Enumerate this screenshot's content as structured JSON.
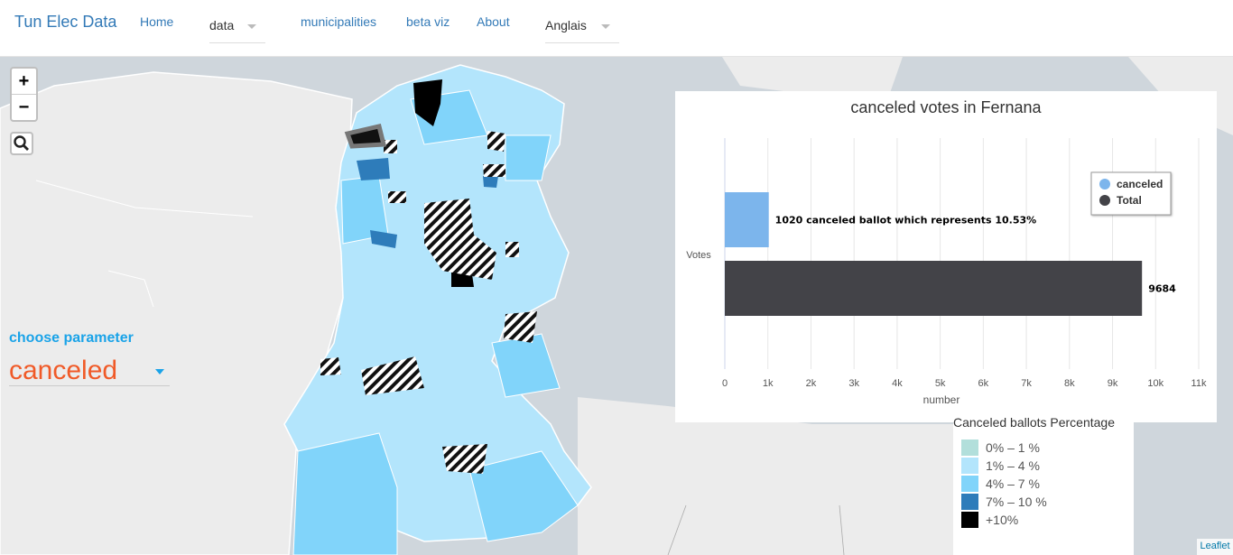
{
  "navbar": {
    "brand": "Tun Elec Data",
    "home": "Home",
    "data_select": "data",
    "municipalities": "municipalities",
    "beta_viz": "beta viz",
    "about": "About",
    "language_select": "Anglais"
  },
  "map_controls": {
    "zoom_in": "+",
    "zoom_out": "−",
    "attribution": "Leaflet"
  },
  "parameter": {
    "title": "choose parameter",
    "value": "canceled"
  },
  "legend": {
    "title": "Canceled ballots Percentage",
    "items": [
      {
        "label": "0% – 1 %",
        "color": "#b2dfdb"
      },
      {
        "label": "1% – 4 %",
        "color": "#b3e5fc"
      },
      {
        "label": "4% – 7 %",
        "color": "#81d4fa"
      },
      {
        "label": "7% – 10 %",
        "color": "#2e7cba"
      },
      {
        "label": "+10%",
        "color": "#000000"
      }
    ]
  },
  "chart_data": {
    "type": "bar",
    "orientation": "horizontal",
    "title": "canceled votes in Fernana",
    "categories": [
      "Votes"
    ],
    "series": [
      {
        "name": "canceled",
        "values": [
          1020
        ],
        "color": "#7cb5ec",
        "data_label": "1020 canceled ballot which represents 10.53%"
      },
      {
        "name": "Total",
        "values": [
          9684
        ],
        "color": "#434348",
        "data_label": "9684"
      }
    ],
    "xlabel": "number",
    "ylabel": "",
    "xlim": [
      0,
      11000
    ],
    "ticks": [
      "0",
      "1k",
      "2k",
      "3k",
      "4k",
      "5k",
      "6k",
      "7k",
      "8k",
      "9k",
      "10k",
      "11k"
    ],
    "grid": true,
    "legend_position": "top-right"
  }
}
